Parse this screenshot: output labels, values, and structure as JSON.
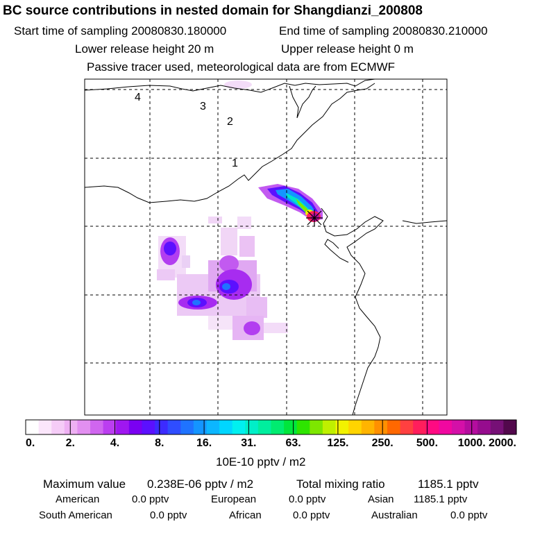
{
  "header": {
    "title": "BC  source contributions in nested domain for Shangdianzi_200808",
    "start_time": "Start time of sampling 20080830.180000",
    "end_time": "End time of sampling 20080830.210000",
    "lower_release": "Lower release height   20 m",
    "upper_release": "Upper release height    0 m",
    "tracer_note": "Passive tracer used, meteorological data are from ECMWF"
  },
  "map": {
    "day_markers": [
      "1",
      "2",
      "3",
      "4"
    ],
    "station": "Shangdianzi"
  },
  "legend": {
    "tick_labels": [
      "0.",
      "2.",
      "4.",
      "8.",
      "16.",
      "31.",
      "63.",
      "125.",
      "250.",
      "500.",
      "1000.",
      "2000."
    ],
    "unit_label": "10E-10 pptv / m2",
    "colors": [
      "#ffffff",
      "#fbe6fb",
      "#f5ccf7",
      "#eeb0f3",
      "#e28ff0",
      "#d066ef",
      "#bb3ef0",
      "#9f17f0",
      "#7a00f2",
      "#5b10ff",
      "#3c2bff",
      "#2f4dff",
      "#1f73ff",
      "#1495ff",
      "#0cb6ff",
      "#00d6ff",
      "#00f0f0",
      "#00efc8",
      "#00ee9e",
      "#00ec70",
      "#00e63c",
      "#2ee400",
      "#7ee600",
      "#bff000",
      "#f2f200",
      "#ffd400",
      "#ffb400",
      "#ff9000",
      "#ff6800",
      "#ff4040",
      "#ff1e5c",
      "#ff0a82",
      "#f008a0",
      "#d410a8",
      "#b40d9e",
      "#960c8e",
      "#761076",
      "#52084c"
    ]
  },
  "summary": {
    "max_value_label": "Maximum value",
    "max_value": "0.238E-06 pptv / m2",
    "total_label": "Total mixing ratio",
    "total_value": "1185.1 pptv",
    "regions": [
      {
        "name": "American",
        "value": "0.0 pptv"
      },
      {
        "name": "European",
        "value": "0.0 pptv"
      },
      {
        "name": "Asian",
        "value": "1185.1 pptv"
      },
      {
        "name": "South American",
        "value": "0.0 pptv"
      },
      {
        "name": "African",
        "value": "0.0 pptv"
      },
      {
        "name": "Australian",
        "value": "0.0 pptv"
      }
    ]
  }
}
